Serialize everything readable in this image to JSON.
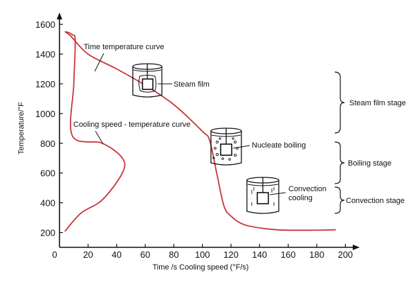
{
  "chart_data": {
    "type": "line",
    "xlabel": "Time /s   Cooling speed (°F/s)",
    "ylabel": "Temperature/°F",
    "xlim": [
      0,
      210
    ],
    "ylim": [
      100,
      1680
    ],
    "x_ticks": [
      "0",
      "20",
      "40",
      "60",
      "80",
      "100",
      "120",
      "140",
      "160",
      "180",
      "200"
    ],
    "y_ticks": [
      "200",
      "400",
      "600",
      "800",
      "1000",
      "1200",
      "1400",
      "1600"
    ],
    "series": [
      {
        "name": "Time temperature curve",
        "points": [
          [
            4,
            1550
          ],
          [
            8,
            1520
          ],
          [
            20,
            1400
          ],
          [
            40,
            1300
          ],
          [
            60,
            1190
          ],
          [
            80,
            1060
          ],
          [
            100,
            880
          ],
          [
            105,
            820
          ],
          [
            110,
            600
          ],
          [
            115,
            380
          ],
          [
            120,
            310
          ],
          [
            130,
            250
          ],
          [
            150,
            220
          ],
          [
            170,
            215
          ],
          [
            193,
            218
          ]
        ]
      },
      {
        "name": "Cooling speed - temperature curve",
        "points": [
          [
            5,
            1550
          ],
          [
            9,
            1530
          ],
          [
            11,
            1490
          ],
          [
            10,
            1200
          ],
          [
            9,
            850
          ],
          [
            30,
            800
          ],
          [
            44,
            700
          ],
          [
            44,
            600
          ],
          [
            30,
            420
          ],
          [
            15,
            330
          ],
          [
            4,
            210
          ]
        ]
      }
    ],
    "annotations": [
      "Time temperature curve",
      "Cooling speed - temperature curve",
      "Steam film",
      "Nucleate boiling",
      "Convection",
      "cooling"
    ],
    "stages": [
      "Steam film stage",
      "Boiling stage",
      "Convection stage"
    ],
    "colors": {
      "curve": "#c8353b",
      "axis": "#111111"
    }
  }
}
